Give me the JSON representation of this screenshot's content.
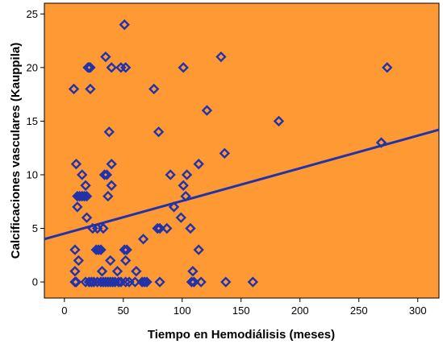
{
  "chart_data": {
    "type": "scatter",
    "title": "",
    "xlabel": "Tiempo en Hemodiálisis (meses)",
    "ylabel": "Calcificaciones vasculares (Kauppila)",
    "xlim": [
      -17,
      318
    ],
    "ylim": [
      -1.5,
      26
    ],
    "xticks": [
      0,
      50,
      100,
      150,
      200,
      250,
      300
    ],
    "yticks": [
      0,
      5,
      10,
      15,
      20,
      25
    ],
    "grid": false,
    "legend": "none",
    "colors": {
      "plot_background": "#FF9933",
      "marker": "#2233AA",
      "fit_line": "#2233AA",
      "axis": "#000000"
    },
    "points": [
      [
        9,
        0
      ],
      [
        10,
        0
      ],
      [
        18,
        0
      ],
      [
        21,
        0
      ],
      [
        23,
        0
      ],
      [
        25,
        0
      ],
      [
        28,
        0
      ],
      [
        31,
        0
      ],
      [
        33,
        0
      ],
      [
        35,
        0
      ],
      [
        37,
        0
      ],
      [
        39,
        0
      ],
      [
        41,
        0
      ],
      [
        43,
        0
      ],
      [
        46,
        0
      ],
      [
        48,
        0
      ],
      [
        52,
        0
      ],
      [
        55,
        0
      ],
      [
        60,
        0
      ],
      [
        66,
        0
      ],
      [
        68,
        0
      ],
      [
        70,
        0
      ],
      [
        81,
        0
      ],
      [
        108,
        0
      ],
      [
        110,
        0
      ],
      [
        116,
        0
      ],
      [
        137,
        0
      ],
      [
        160,
        0
      ],
      [
        9,
        1
      ],
      [
        32,
        1
      ],
      [
        45,
        1
      ],
      [
        61,
        1
      ],
      [
        109,
        1
      ],
      [
        12,
        2
      ],
      [
        39,
        2
      ],
      [
        52,
        2
      ],
      [
        9,
        3
      ],
      [
        27,
        3
      ],
      [
        29,
        3
      ],
      [
        31,
        3
      ],
      [
        51,
        3
      ],
      [
        53,
        3
      ],
      [
        114,
        3
      ],
      [
        67,
        4
      ],
      [
        24,
        5
      ],
      [
        28,
        5
      ],
      [
        33,
        5
      ],
      [
        79,
        5
      ],
      [
        81,
        5
      ],
      [
        87,
        5
      ],
      [
        107,
        5
      ],
      [
        19,
        6
      ],
      [
        99,
        6
      ],
      [
        11,
        7
      ],
      [
        93,
        7
      ],
      [
        11,
        8
      ],
      [
        13,
        8
      ],
      [
        15,
        8
      ],
      [
        17,
        8
      ],
      [
        19,
        8
      ],
      [
        37,
        8
      ],
      [
        103,
        8
      ],
      [
        40,
        9
      ],
      [
        18,
        9
      ],
      [
        101,
        9
      ],
      [
        15,
        10
      ],
      [
        34,
        10
      ],
      [
        36,
        10
      ],
      [
        90,
        10
      ],
      [
        104,
        10
      ],
      [
        10,
        11
      ],
      [
        40,
        11
      ],
      [
        114,
        11
      ],
      [
        136,
        12
      ],
      [
        269,
        13
      ],
      [
        38,
        14
      ],
      [
        80,
        14
      ],
      [
        182,
        15
      ],
      [
        121,
        16
      ],
      [
        8,
        18
      ],
      [
        22,
        18
      ],
      [
        76,
        18
      ],
      [
        20,
        20
      ],
      [
        21,
        20
      ],
      [
        22,
        20
      ],
      [
        40,
        20
      ],
      [
        48,
        20
      ],
      [
        52,
        20
      ],
      [
        101,
        20
      ],
      [
        274,
        20
      ],
      [
        35,
        21
      ],
      [
        133,
        21
      ],
      [
        51,
        24
      ]
    ],
    "fit_line": {
      "x": [
        -17,
        318
      ],
      "y": [
        4.0,
        14.2
      ]
    }
  }
}
